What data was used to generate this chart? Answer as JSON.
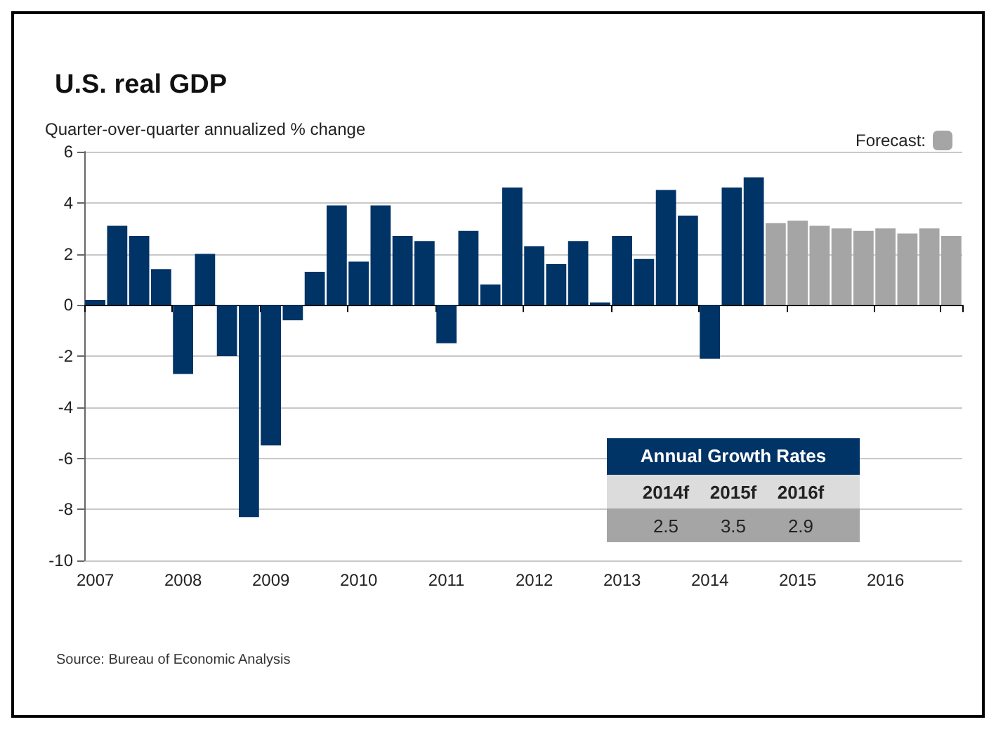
{
  "chart_data": {
    "type": "bar",
    "title": "U.S. real GDP",
    "ylabel": "Quarter-over-quarter annualized % change",
    "categories": [
      "2007",
      null,
      null,
      null,
      "2008",
      null,
      null,
      null,
      "2009",
      null,
      null,
      null,
      "2010",
      null,
      null,
      null,
      "2011",
      null,
      null,
      null,
      "2012",
      null,
      null,
      null,
      "2013",
      null,
      null,
      null,
      "2014",
      null,
      null,
      null,
      "2015",
      null,
      null,
      null,
      "2016",
      null,
      null,
      null
    ],
    "series": [
      {
        "color": "#003366",
        "values": [
          0.2,
          3.1,
          2.7,
          1.4,
          -2.7,
          2.0,
          -2.0,
          -8.3,
          -5.5,
          -0.6,
          1.3,
          3.9,
          1.7,
          3.9,
          2.7,
          2.5,
          -1.5,
          2.9,
          0.8,
          4.6,
          2.3,
          1.6,
          2.5,
          0.1,
          2.7,
          1.8,
          4.5,
          3.5,
          -2.1,
          4.6,
          5.0,
          null,
          null,
          null,
          null,
          null,
          null,
          null,
          null,
          null
        ]
      },
      {
        "name": "Forecast:",
        "color": "#a5a5a5",
        "values": [
          null,
          null,
          null,
          null,
          null,
          null,
          null,
          null,
          null,
          null,
          null,
          null,
          null,
          null,
          null,
          null,
          null,
          null,
          null,
          null,
          null,
          null,
          null,
          null,
          null,
          null,
          null,
          null,
          null,
          null,
          null,
          3.2,
          3.3,
          3.1,
          3.0,
          2.9,
          3.0,
          2.8,
          3.0,
          2.7
        ]
      }
    ],
    "ylim": [
      -10,
      6
    ],
    "yticks": [
      -10,
      -8,
      -6,
      -4,
      -2,
      0,
      2,
      4,
      6
    ],
    "grid": "y",
    "legend": "top right",
    "annotations": [
      "Source: Bureau of Economic Analysis",
      "Annual Growth Rates",
      "2014f",
      "2015f",
      "2016f",
      "2.5",
      "3.5",
      "2.9"
    ]
  }
}
